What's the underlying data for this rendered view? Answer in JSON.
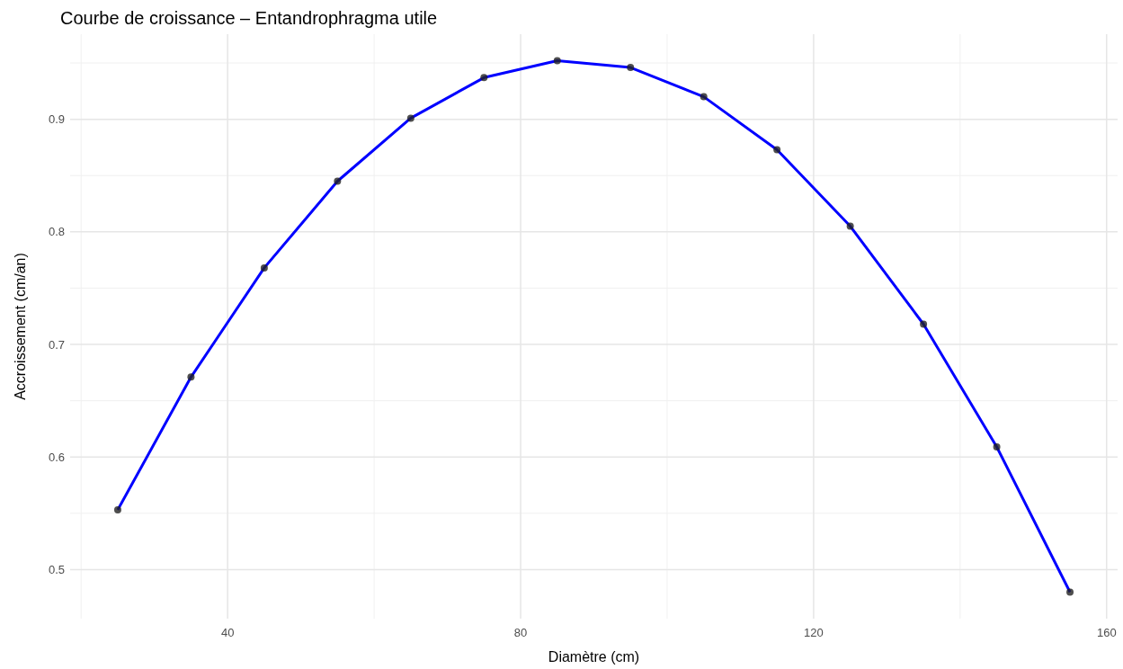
{
  "chart_data": {
    "type": "line",
    "title": "Courbe de croissance – Entandrophragma utile",
    "xlabel": "Diamètre (cm)",
    "ylabel": "Accroissement (cm/an)",
    "x": [
      25,
      35,
      45,
      55,
      65,
      75,
      85,
      95,
      105,
      115,
      125,
      135,
      145,
      155
    ],
    "series": [
      {
        "color": "#0000ff",
        "values": [
          0.553,
          0.671,
          0.768,
          0.845,
          0.901,
          0.937,
          0.952,
          0.946,
          0.92,
          0.873,
          0.805,
          0.718,
          0.609,
          0.48
        ]
      }
    ],
    "xlim": [
      18.5,
      161.5
    ],
    "xticks": [
      40,
      80,
      120,
      160
    ],
    "ylim": [
      0.4564,
      0.9756
    ],
    "yticks": [
      0.5,
      0.6,
      0.7,
      0.8,
      0.9
    ],
    "grid": true,
    "marker": "circle",
    "line_style": "solid"
  }
}
